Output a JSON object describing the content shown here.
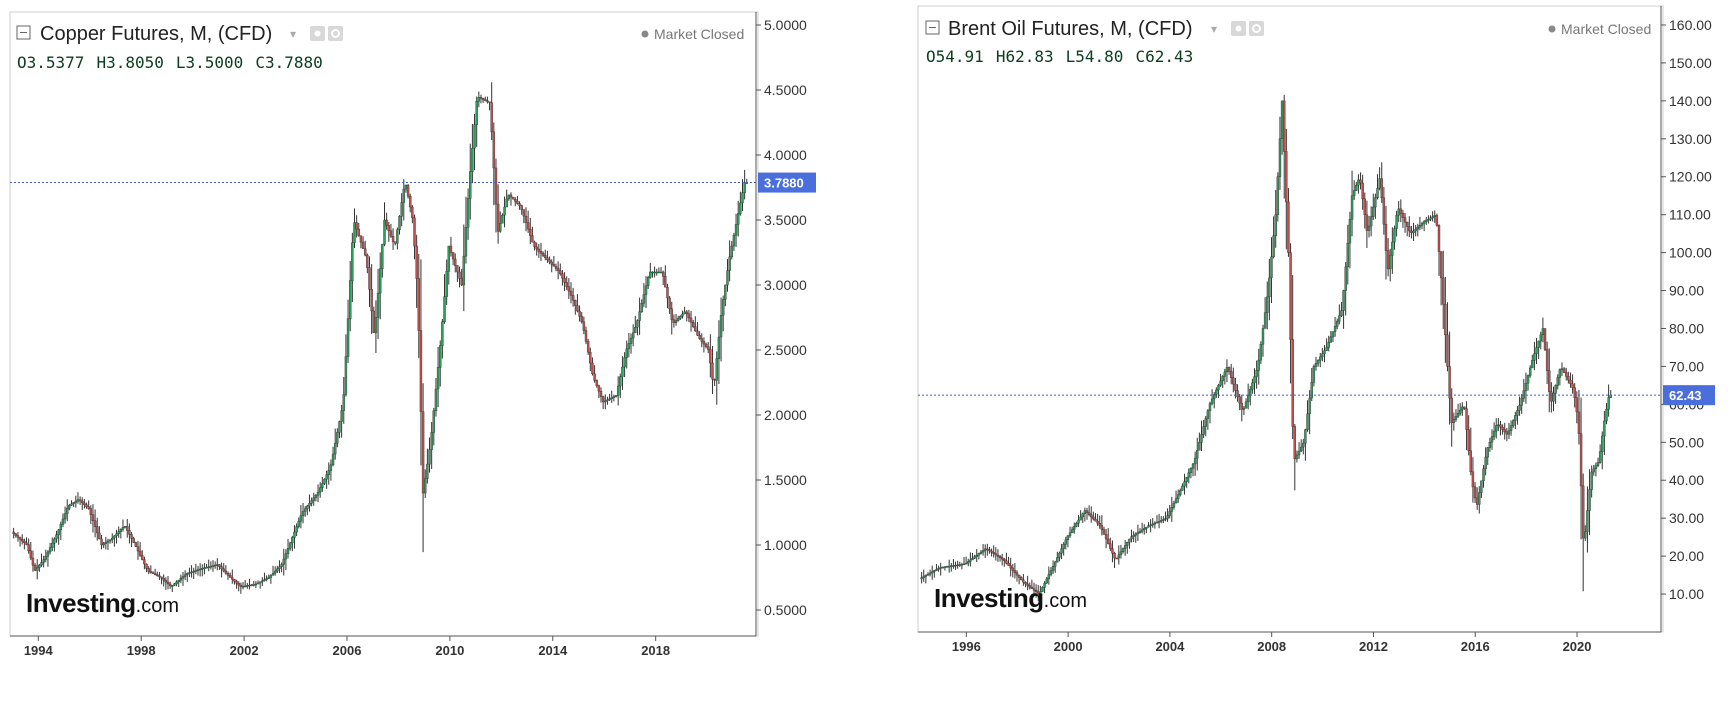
{
  "chart_data": [
    {
      "type": "candlestick",
      "title": "Copper Futures, M, (CFD)",
      "status": "Market Closed",
      "ohlc": {
        "open_label": "O",
        "open": "3.5377",
        "high_label": "H",
        "high": "3.8050",
        "low_label": "L",
        "low": "3.5000",
        "close_label": "C",
        "close": "3.7880"
      },
      "current_price_label": "3.7880",
      "current_price": 3.788,
      "ylim": [
        0.3,
        5.1
      ],
      "ytick_labels": [
        "5.0000",
        "4.5000",
        "4.0000",
        "3.5000",
        "3.0000",
        "2.5000",
        "2.0000",
        "1.5000",
        "1.0000",
        "0.5000"
      ],
      "yticks": [
        5.0,
        4.5,
        4.0,
        3.5,
        3.0,
        2.5,
        2.0,
        1.5,
        1.0,
        0.5
      ],
      "xlim": [
        1992.9,
        2021.9
      ],
      "xtick_labels": [
        "1994",
        "1998",
        "2002",
        "2006",
        "2010",
        "2014",
        "2018"
      ],
      "xticks": [
        1994,
        1998,
        2002,
        2006,
        2010,
        2014,
        2018
      ],
      "series_path": [
        [
          1993.0,
          1.1
        ],
        [
          1993.6,
          1.0
        ],
        [
          1993.9,
          0.8
        ],
        [
          1994.3,
          0.9
        ],
        [
          1994.8,
          1.1
        ],
        [
          1995.2,
          1.3
        ],
        [
          1995.6,
          1.35
        ],
        [
          1996.0,
          1.28
        ],
        [
          1996.5,
          1.0
        ],
        [
          1996.9,
          1.05
        ],
        [
          1997.4,
          1.15
        ],
        [
          1997.8,
          1.0
        ],
        [
          1998.3,
          0.8
        ],
        [
          1998.8,
          0.75
        ],
        [
          1999.2,
          0.68
        ],
        [
          1999.8,
          0.78
        ],
        [
          2000.4,
          0.82
        ],
        [
          2001.0,
          0.85
        ],
        [
          2001.5,
          0.75
        ],
        [
          2001.9,
          0.68
        ],
        [
          2002.5,
          0.7
        ],
        [
          2003.0,
          0.75
        ],
        [
          2003.5,
          0.85
        ],
        [
          2003.9,
          1.05
        ],
        [
          2004.3,
          1.25
        ],
        [
          2004.9,
          1.4
        ],
        [
          2005.4,
          1.6
        ],
        [
          2005.9,
          2.1
        ],
        [
          2006.3,
          3.5
        ],
        [
          2006.8,
          3.2
        ],
        [
          2007.1,
          2.6
        ],
        [
          2007.5,
          3.5
        ],
        [
          2007.9,
          3.3
        ],
        [
          2008.3,
          3.8
        ],
        [
          2008.6,
          3.5
        ],
        [
          2008.8,
          2.9
        ],
        [
          2009.0,
          1.4
        ],
        [
          2009.3,
          1.8
        ],
        [
          2009.7,
          2.6
        ],
        [
          2010.0,
          3.3
        ],
        [
          2010.5,
          3.0
        ],
        [
          2010.8,
          3.8
        ],
        [
          2011.1,
          4.45
        ],
        [
          2011.6,
          4.4
        ],
        [
          2011.9,
          3.4
        ],
        [
          2012.3,
          3.7
        ],
        [
          2012.8,
          3.6
        ],
        [
          2013.3,
          3.3
        ],
        [
          2013.8,
          3.2
        ],
        [
          2014.3,
          3.1
        ],
        [
          2014.8,
          2.9
        ],
        [
          2015.2,
          2.7
        ],
        [
          2015.6,
          2.3
        ],
        [
          2016.0,
          2.1
        ],
        [
          2016.5,
          2.15
        ],
        [
          2016.9,
          2.5
        ],
        [
          2017.3,
          2.7
        ],
        [
          2017.8,
          3.1
        ],
        [
          2018.3,
          3.1
        ],
        [
          2018.7,
          2.7
        ],
        [
          2019.2,
          2.8
        ],
        [
          2019.7,
          2.6
        ],
        [
          2020.1,
          2.5
        ],
        [
          2020.3,
          2.2
        ],
        [
          2020.6,
          2.8
        ],
        [
          2020.9,
          3.2
        ],
        [
          2021.3,
          3.6
        ],
        [
          2021.5,
          3.788
        ]
      ],
      "colors": {
        "up": "#2e9e5b",
        "down": "#c0504d",
        "wick": "#333333",
        "price_line": "#3c5dc7",
        "price_label_bg": "#4a6fdc",
        "axis": "#555555",
        "grid_border": "#cfcfcf"
      }
    },
    {
      "type": "candlestick",
      "title": "Brent Oil Futures, M, (CFD)",
      "status": "Market Closed",
      "ohlc": {
        "open_label": "O",
        "open": "54.91",
        "high_label": "H",
        "high": "62.83",
        "low_label": "L",
        "low": "54.80",
        "close_label": "C",
        "close": "62.43"
      },
      "current_price_label": "62.43",
      "current_price": 62.43,
      "ylim": [
        0,
        165
      ],
      "ytick_labels": [
        "160.00",
        "150.00",
        "140.00",
        "130.00",
        "120.00",
        "110.00",
        "100.00",
        "90.00",
        "80.00",
        "70.00",
        "60.00",
        "50.00",
        "40.00",
        "30.00",
        "20.00",
        "10.00"
      ],
      "yticks": [
        160,
        150,
        140,
        130,
        120,
        110,
        100,
        90,
        80,
        70,
        60,
        50,
        40,
        30,
        20,
        10
      ],
      "xlim": [
        1994.1,
        2023.3
      ],
      "xtick_labels": [
        "1996",
        "2000",
        "2004",
        "2008",
        "2012",
        "2016",
        "2020"
      ],
      "xticks": [
        1996,
        2000,
        2004,
        2008,
        2012,
        2016,
        2020
      ],
      "series_path": [
        [
          1994.2,
          14
        ],
        [
          1995.0,
          17
        ],
        [
          1996.0,
          18
        ],
        [
          1996.8,
          22
        ],
        [
          1997.5,
          19
        ],
        [
          1998.3,
          13
        ],
        [
          1998.9,
          10
        ],
        [
          1999.5,
          18
        ],
        [
          2000.0,
          25
        ],
        [
          2000.7,
          32
        ],
        [
          2001.3,
          28
        ],
        [
          2001.9,
          19
        ],
        [
          2002.5,
          25
        ],
        [
          2003.2,
          28
        ],
        [
          2003.9,
          30
        ],
        [
          2004.5,
          38
        ],
        [
          2005.0,
          45
        ],
        [
          2005.6,
          60
        ],
        [
          2006.3,
          70
        ],
        [
          2006.9,
          58
        ],
        [
          2007.5,
          70
        ],
        [
          2007.9,
          90
        ],
        [
          2008.2,
          110
        ],
        [
          2008.45,
          140
        ],
        [
          2008.7,
          100
        ],
        [
          2008.9,
          45
        ],
        [
          2009.3,
          50
        ],
        [
          2009.7,
          70
        ],
        [
          2010.2,
          75
        ],
        [
          2010.8,
          85
        ],
        [
          2011.2,
          115
        ],
        [
          2011.5,
          120
        ],
        [
          2011.8,
          105
        ],
        [
          2012.3,
          120
        ],
        [
          2012.6,
          95
        ],
        [
          2013.0,
          112
        ],
        [
          2013.5,
          105
        ],
        [
          2014.0,
          108
        ],
        [
          2014.5,
          110
        ],
        [
          2014.8,
          85
        ],
        [
          2015.1,
          55
        ],
        [
          2015.6,
          60
        ],
        [
          2015.9,
          40
        ],
        [
          2016.1,
          33
        ],
        [
          2016.5,
          48
        ],
        [
          2016.9,
          55
        ],
        [
          2017.3,
          52
        ],
        [
          2017.8,
          60
        ],
        [
          2018.3,
          72
        ],
        [
          2018.7,
          80
        ],
        [
          2019.0,
          60
        ],
        [
          2019.4,
          70
        ],
        [
          2019.9,
          64
        ],
        [
          2020.1,
          55
        ],
        [
          2020.3,
          22
        ],
        [
          2020.6,
          42
        ],
        [
          2020.9,
          45
        ],
        [
          2021.1,
          55
        ],
        [
          2021.3,
          62.43
        ]
      ],
      "colors": {
        "up": "#2e9e5b",
        "down": "#c0504d",
        "wick": "#333333",
        "price_line": "#3c5dc7",
        "price_label_bg": "#4a6fdc",
        "axis": "#555555",
        "grid_border": "#cfcfcf"
      }
    }
  ],
  "branding": {
    "logo_main": "Investing",
    "logo_sub": ".com"
  }
}
